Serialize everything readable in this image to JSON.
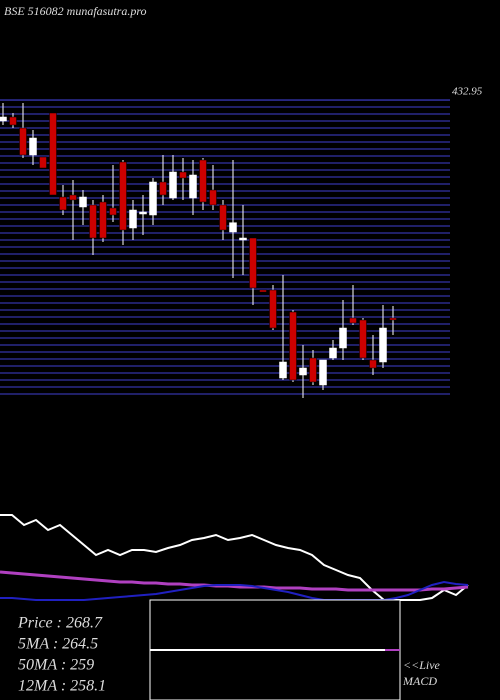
{
  "chart_data": [
    {
      "type": "candlestick",
      "title": "BSE 516082 munafasutra.pro",
      "ylim": [
        209.5,
        433
      ],
      "yticks": [
        432.95
      ],
      "up_color": "#ffffff",
      "down_color": "#cc0000",
      "open": [
        417.25,
        420.25,
        412,
        391.75,
        390.25,
        423.25,
        360.25,
        361.75,
        352.75,
        354.25,
        356.5,
        352,
        386.5,
        337,
        347.5,
        346.75,
        371.5,
        359.5,
        379,
        359.5,
        388,
        365.5,
        354.25,
        334,
        328,
        329.5,
        290.5,
        290.5,
        224.5,
        274,
        226.75,
        239.5,
        219.25,
        239.5,
        247,
        269.5,
        268,
        238,
        236.5,
        269.5
      ],
      "high": [
        430.75,
        423.25,
        430.75,
        410.5,
        390.25,
        423.25,
        369.25,
        373,
        365.5,
        358,
        361.75,
        384.25,
        388,
        358,
        361.75,
        374.5,
        391.75,
        391.75,
        389.5,
        388,
        389.5,
        384.25,
        358,
        388,
        354.25,
        329.5,
        290.5,
        294.25,
        301.75,
        275.5,
        249.25,
        245.5,
        238,
        253,
        283,
        294.25,
        269.5,
        256.75,
        279.25,
        278.5
      ],
      "low": [
        414.25,
        412,
        389.5,
        384.25,
        382,
        361.75,
        346.75,
        328,
        339.25,
        316.75,
        326.5,
        341.5,
        324.25,
        328,
        331.75,
        339.25,
        354.25,
        358,
        358,
        346.75,
        350.5,
        350.5,
        328,
        299.5,
        301.75,
        279.25,
        289,
        260.5,
        223,
        221.5,
        209.5,
        219.25,
        215.5,
        238,
        238,
        264.25,
        238,
        226.75,
        232,
        256.75
      ],
      "close": [
        420.25,
        414.25,
        391.75,
        404.5,
        382,
        361.75,
        350.5,
        358,
        360.25,
        329.5,
        329.5,
        346.75,
        335.5,
        350.5,
        349,
        371.5,
        361.75,
        379,
        374.5,
        376.75,
        356.5,
        354.25,
        335.5,
        341,
        329.5,
        292,
        289,
        262,
        236.5,
        223,
        232,
        221.5,
        238,
        247,
        262,
        265.75,
        239.5,
        232,
        262,
        268
      ]
    },
    {
      "type": "line",
      "ylim": [
        0,
        100
      ],
      "series": [
        {
          "color": "#ffffff",
          "values": [
            85,
            85,
            75,
            80,
            70,
            75,
            65,
            55,
            45,
            50,
            45,
            50,
            50,
            48,
            52,
            55,
            60,
            62,
            65,
            60,
            62,
            65,
            60,
            55,
            52,
            50,
            45,
            35,
            30,
            25,
            22,
            10,
            0,
            0,
            0,
            0,
            2,
            10,
            5,
            15
          ]
        },
        {
          "color": "#b040c0",
          "values": [
            28,
            27,
            26,
            25,
            24,
            23,
            22,
            21,
            20,
            19,
            18,
            18,
            17,
            17,
            16,
            16,
            15,
            15,
            14,
            14,
            13,
            13,
            13,
            12,
            12,
            12,
            11,
            11,
            11,
            10,
            10,
            10,
            10,
            10,
            10,
            10,
            11,
            11,
            12,
            13
          ]
        },
        {
          "color": "#2020c0",
          "values": [
            2,
            2,
            1,
            0,
            0,
            0,
            0,
            0,
            1,
            2,
            3,
            4,
            5,
            6,
            8,
            10,
            12,
            14,
            15,
            15,
            15,
            14,
            12,
            10,
            8,
            5,
            2,
            0,
            0,
            0,
            0,
            0,
            0,
            2,
            5,
            10,
            15,
            18,
            16,
            15
          ]
        }
      ],
      "info": [
        {
          "label": "Price   :",
          "value": 268.7
        },
        {
          "label": "5MA :",
          "value": 264.5
        },
        {
          "label": "50MA :",
          "value": 259
        },
        {
          "label": "12MA :",
          "value": 258.1
        }
      ],
      "macd_label": [
        "<<Live",
        "MACD"
      ]
    }
  ]
}
